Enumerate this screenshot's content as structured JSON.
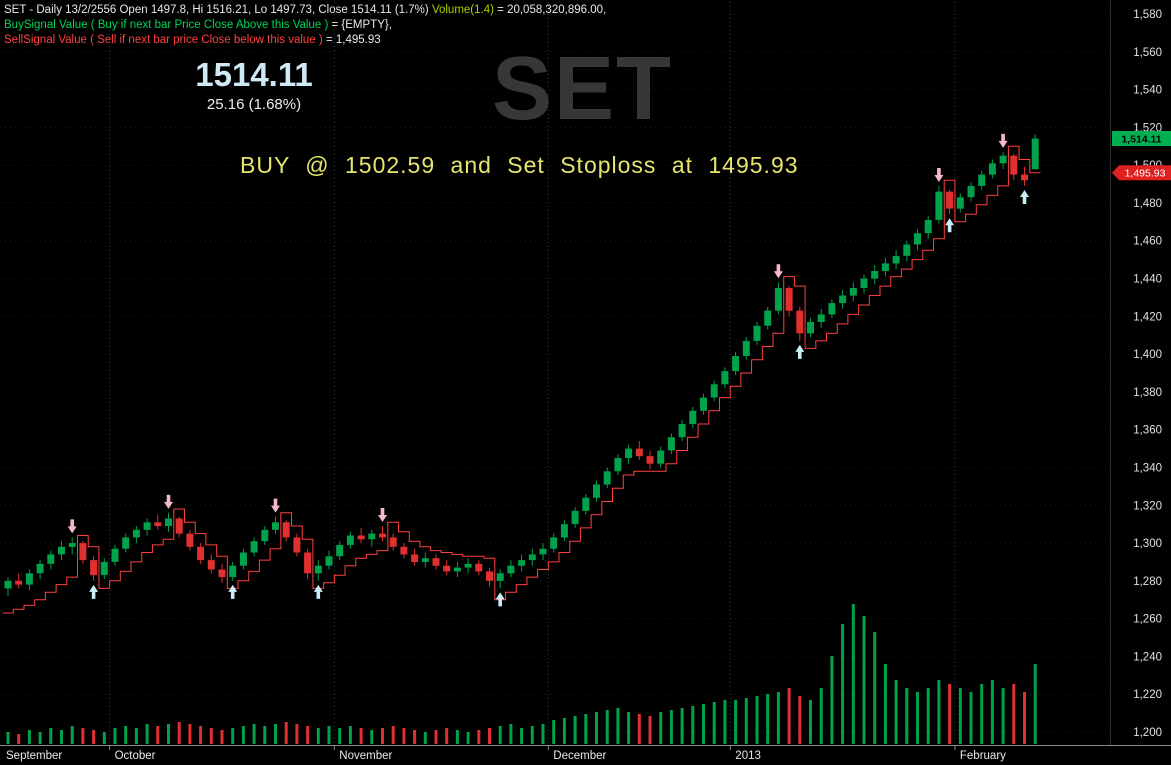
{
  "header": {
    "line1_white": "SET - Daily 13/2/2556 Open 1497.8, Hi 1516.21, Lo 1497.73, Close 1514.11 (1.7%)",
    "line1_volume_label": "Volume(1.4)",
    "line1_volume_value": "= 20,058,320,896.00,",
    "line2_green": "BuySignal Value ( Buy if next bar Price Close Above this Value )",
    "line2_white": "= {EMPTY},",
    "line3_red": "SellSignal Value ( Sell if next bar price Close below this value )",
    "line3_white": "= 1,495.93"
  },
  "quote": {
    "last": "1514.11",
    "change": "25.16 (1.68%)"
  },
  "watermark": "SET",
  "annotation": "BUY @ 1502.59 and Set Stoploss at 1495.93",
  "axis_badges": {
    "last": "1,514.11",
    "stop": "1,495.93"
  },
  "colors": {
    "up": "#00a24b",
    "down": "#e03030",
    "stop_line": "#ff4040",
    "buy_arrow": "#c9eef7",
    "sell_arrow": "#f6b9c8",
    "grid_v": "#3f3f3f",
    "grid_h": "#1c1c1c",
    "axis_text": "#e0e0e0",
    "badge_up": "#00b050",
    "badge_down": "#e02020",
    "axis_line": "#8a8a8a"
  },
  "chart_data": {
    "type": "candlestick",
    "symbol": "SET",
    "timeframe": "Daily",
    "date": "13/2/2556",
    "last_ohlc": {
      "open": 1497.8,
      "high": 1516.21,
      "low": 1497.73,
      "close": 1514.11,
      "change_pct": "1.7%"
    },
    "volume_text": "20,058,320,896.00",
    "signals": {
      "buy_at": 1502.59,
      "stoploss": 1495.93,
      "buy_signal_value": "{EMPTY}",
      "sell_signal_value": 1495.93
    },
    "ylim": [
      1200,
      1580
    ],
    "ytick_step": 20,
    "yticks": [
      1580,
      1560,
      1540,
      1520,
      1500,
      1480,
      1460,
      1440,
      1420,
      1400,
      1380,
      1360,
      1340,
      1320,
      1300,
      1280,
      1260,
      1240,
      1220,
      1200
    ],
    "xlabels": [
      {
        "label": "September",
        "index": 0
      },
      {
        "label": "October",
        "index": 10
      },
      {
        "label": "November",
        "index": 31
      },
      {
        "label": "December",
        "index": 51
      },
      {
        "label": "2013",
        "index": 68
      },
      {
        "label": "February",
        "index": 89
      }
    ],
    "gridline_indices": [
      10,
      31,
      51,
      68,
      89
    ],
    "volume_max": 35,
    "volume_pane_height": 140,
    "last_price": 1514.11,
    "stop_price": 1495.93,
    "markers": {
      "buy": [
        8,
        21,
        29,
        46,
        74,
        88,
        95
      ],
      "sell": [
        6,
        15,
        25,
        35,
        72,
        87,
        93
      ]
    },
    "candles": [
      [
        1276,
        1282,
        1272,
        1280,
        3,
        1263
      ],
      [
        1280,
        1284,
        1276,
        1278,
        2.5,
        1265
      ],
      [
        1278,
        1286,
        1275,
        1284,
        3.5,
        1267
      ],
      [
        1284,
        1291,
        1281,
        1289,
        3,
        1270
      ],
      [
        1289,
        1296,
        1286,
        1294,
        4,
        1274
      ],
      [
        1294,
        1301,
        1291,
        1298,
        3.5,
        1278
      ],
      [
        1298,
        1303,
        1294,
        1300,
        4.5,
        1282
      ],
      [
        1300,
        1301,
        1289,
        1291,
        4,
        1304
      ],
      [
        1291,
        1293,
        1280,
        1283,
        3.5,
        1298
      ],
      [
        1283,
        1292,
        1281,
        1290,
        3,
        1276
      ],
      [
        1290,
        1299,
        1288,
        1297,
        4,
        1280
      ],
      [
        1297,
        1305,
        1295,
        1303,
        4.5,
        1285
      ],
      [
        1303,
        1309,
        1300,
        1307,
        4,
        1290
      ],
      [
        1307,
        1313,
        1304,
        1311,
        5,
        1295
      ],
      [
        1311,
        1315,
        1307,
        1309,
        4.5,
        1299
      ],
      [
        1309,
        1316,
        1306,
        1313,
        5,
        1302
      ],
      [
        1313,
        1314,
        1303,
        1305,
        5.5,
        1318
      ],
      [
        1305,
        1307,
        1296,
        1298,
        5,
        1311
      ],
      [
        1298,
        1300,
        1289,
        1291,
        4.5,
        1305
      ],
      [
        1291,
        1294,
        1284,
        1286,
        4,
        1299
      ],
      [
        1286,
        1289,
        1279,
        1282,
        3.5,
        1293
      ],
      [
        1282,
        1290,
        1280,
        1288,
        4,
        1276
      ],
      [
        1288,
        1297,
        1286,
        1295,
        4.5,
        1280
      ],
      [
        1295,
        1303,
        1293,
        1301,
        5,
        1285
      ],
      [
        1301,
        1309,
        1299,
        1307,
        4.5,
        1291
      ],
      [
        1307,
        1314,
        1305,
        1311,
        5,
        1297
      ],
      [
        1311,
        1312,
        1301,
        1303,
        5.5,
        1316
      ],
      [
        1303,
        1305,
        1293,
        1295,
        5,
        1309
      ],
      [
        1295,
        1297,
        1281,
        1284,
        4.5,
        1302
      ],
      [
        1284,
        1291,
        1280,
        1288,
        4,
        1276
      ],
      [
        1288,
        1296,
        1286,
        1293,
        4.5,
        1279
      ],
      [
        1293,
        1301,
        1291,
        1299,
        4,
        1283
      ],
      [
        1299,
        1306,
        1297,
        1304,
        4.5,
        1288
      ],
      [
        1304,
        1308,
        1300,
        1302,
        4,
        1292
      ],
      [
        1302,
        1307,
        1298,
        1305,
        3.5,
        1294
      ],
      [
        1305,
        1309,
        1301,
        1303,
        4,
        1296
      ],
      [
        1303,
        1305,
        1296,
        1298,
        4.5,
        1311
      ],
      [
        1298,
        1300,
        1292,
        1294,
        4,
        1306
      ],
      [
        1294,
        1297,
        1288,
        1290,
        3.5,
        1301
      ],
      [
        1290,
        1295,
        1287,
        1292,
        3,
        1298
      ],
      [
        1292,
        1294,
        1286,
        1288,
        3.5,
        1296
      ],
      [
        1288,
        1291,
        1283,
        1285,
        4,
        1295
      ],
      [
        1285,
        1290,
        1282,
        1287,
        3.5,
        1294
      ],
      [
        1287,
        1292,
        1284,
        1289,
        3,
        1293
      ],
      [
        1289,
        1291,
        1283,
        1285,
        3.5,
        1293
      ],
      [
        1285,
        1287,
        1277,
        1280,
        4,
        1292
      ],
      [
        1280,
        1286,
        1276,
        1284,
        4.5,
        1270
      ],
      [
        1284,
        1291,
        1282,
        1288,
        5,
        1274
      ],
      [
        1288,
        1294,
        1285,
        1291,
        4,
        1278
      ],
      [
        1291,
        1297,
        1288,
        1294,
        4.5,
        1282
      ],
      [
        1294,
        1300,
        1291,
        1297,
        5,
        1286
      ],
      [
        1297,
        1305,
        1295,
        1303,
        6,
        1290
      ],
      [
        1303,
        1312,
        1301,
        1310,
        6.5,
        1295
      ],
      [
        1310,
        1319,
        1308,
        1317,
        7,
        1301
      ],
      [
        1317,
        1326,
        1315,
        1324,
        7.5,
        1308
      ],
      [
        1324,
        1333,
        1322,
        1331,
        8,
        1315
      ],
      [
        1331,
        1340,
        1329,
        1338,
        8.5,
        1322
      ],
      [
        1338,
        1347,
        1336,
        1345,
        9,
        1329
      ],
      [
        1345,
        1352,
        1342,
        1350,
        8,
        1336
      ],
      [
        1350,
        1354,
        1344,
        1346,
        7.5,
        1338
      ],
      [
        1346,
        1349,
        1339,
        1342,
        7,
        1338
      ],
      [
        1342,
        1351,
        1340,
        1349,
        8,
        1338
      ],
      [
        1349,
        1358,
        1347,
        1356,
        8.5,
        1342
      ],
      [
        1356,
        1365,
        1354,
        1363,
        9,
        1349
      ],
      [
        1363,
        1372,
        1361,
        1370,
        9.5,
        1356
      ],
      [
        1370,
        1379,
        1368,
        1377,
        10,
        1363
      ],
      [
        1377,
        1386,
        1375,
        1384,
        10.5,
        1370
      ],
      [
        1384,
        1393,
        1382,
        1391,
        11,
        1377
      ],
      [
        1391,
        1401,
        1389,
        1399,
        11,
        1383
      ],
      [
        1399,
        1409,
        1397,
        1407,
        11.5,
        1390
      ],
      [
        1407,
        1417,
        1405,
        1415,
        12,
        1397
      ],
      [
        1415,
        1425,
        1413,
        1423,
        12.5,
        1404
      ],
      [
        1423,
        1438,
        1421,
        1435,
        13,
        1411
      ],
      [
        1435,
        1436,
        1420,
        1423,
        14,
        1441
      ],
      [
        1423,
        1425,
        1407,
        1411,
        12,
        1436
      ],
      [
        1411,
        1419,
        1409,
        1417,
        11,
        1403
      ],
      [
        1417,
        1424,
        1414,
        1421,
        14,
        1407
      ],
      [
        1421,
        1429,
        1419,
        1427,
        22,
        1411
      ],
      [
        1427,
        1434,
        1424,
        1431,
        30,
        1416
      ],
      [
        1431,
        1438,
        1428,
        1435,
        35,
        1421
      ],
      [
        1435,
        1442,
        1432,
        1440,
        32,
        1426
      ],
      [
        1440,
        1447,
        1437,
        1444,
        28,
        1431
      ],
      [
        1444,
        1451,
        1441,
        1448,
        20,
        1436
      ],
      [
        1448,
        1455,
        1445,
        1452,
        16,
        1441
      ],
      [
        1452,
        1460,
        1449,
        1458,
        14,
        1445
      ],
      [
        1458,
        1466,
        1455,
        1464,
        13,
        1450
      ],
      [
        1464,
        1473,
        1461,
        1471,
        14,
        1455
      ],
      [
        1471,
        1489,
        1469,
        1486,
        16,
        1461
      ],
      [
        1486,
        1487,
        1474,
        1477,
        15,
        1492
      ],
      [
        1477,
        1485,
        1475,
        1483,
        14,
        1470
      ],
      [
        1483,
        1491,
        1481,
        1489,
        13,
        1474
      ],
      [
        1489,
        1497,
        1487,
        1495,
        15,
        1479
      ],
      [
        1495,
        1503,
        1493,
        1501,
        16,
        1484
      ],
      [
        1501,
        1507,
        1498,
        1505,
        14,
        1489
      ],
      [
        1505,
        1506,
        1492,
        1495,
        15,
        1510
      ],
      [
        1495,
        1499,
        1489,
        1492,
        13,
        1503
      ],
      [
        1497.8,
        1516.21,
        1497.73,
        1514.11,
        20,
        1495.93
      ]
    ]
  }
}
